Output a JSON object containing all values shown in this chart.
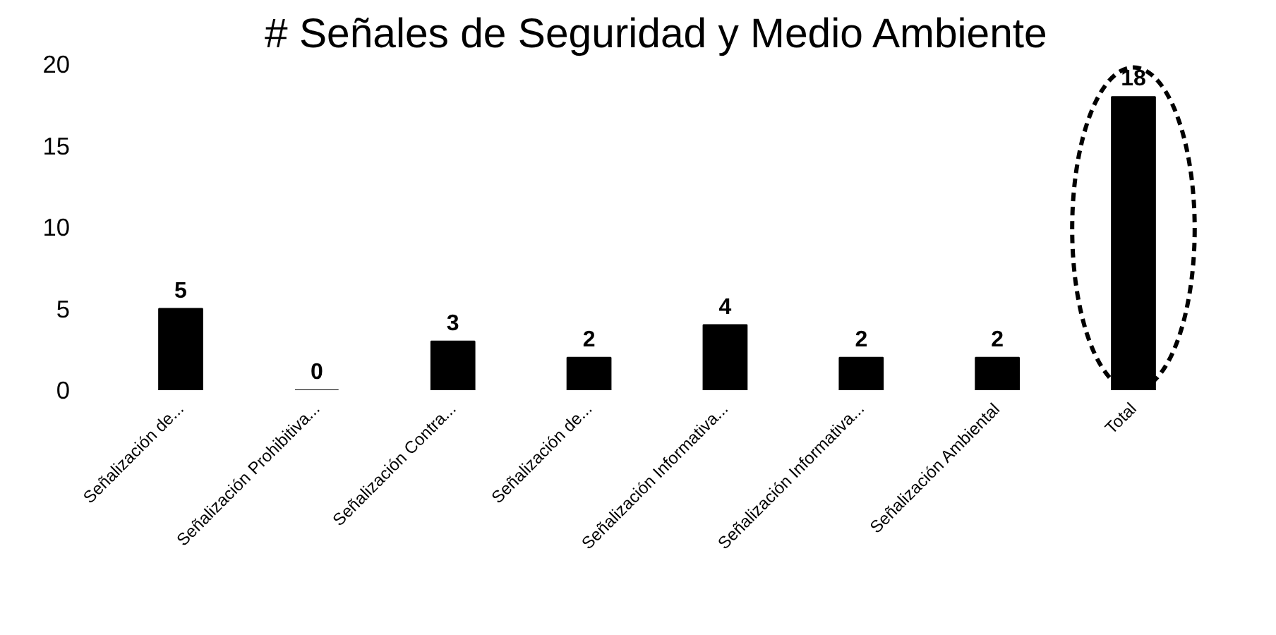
{
  "chart_data": {
    "type": "bar",
    "title": "# Señales de Seguridad y Medio Ambiente",
    "categories": [
      "Señalización de...",
      "Señalización Prohibitiva...",
      "Señalización Contra...",
      "Señalización de...",
      "Señalización Informativa...",
      "Señalización Informativa...",
      "Señalización Ambiental",
      "Total"
    ],
    "values": [
      5,
      0,
      3,
      2,
      4,
      2,
      2,
      18
    ],
    "color": "#000000",
    "data_labels": true,
    "ylim": [
      0,
      20
    ],
    "yticks": [
      0,
      5,
      10,
      15,
      20
    ],
    "grid": false
  }
}
